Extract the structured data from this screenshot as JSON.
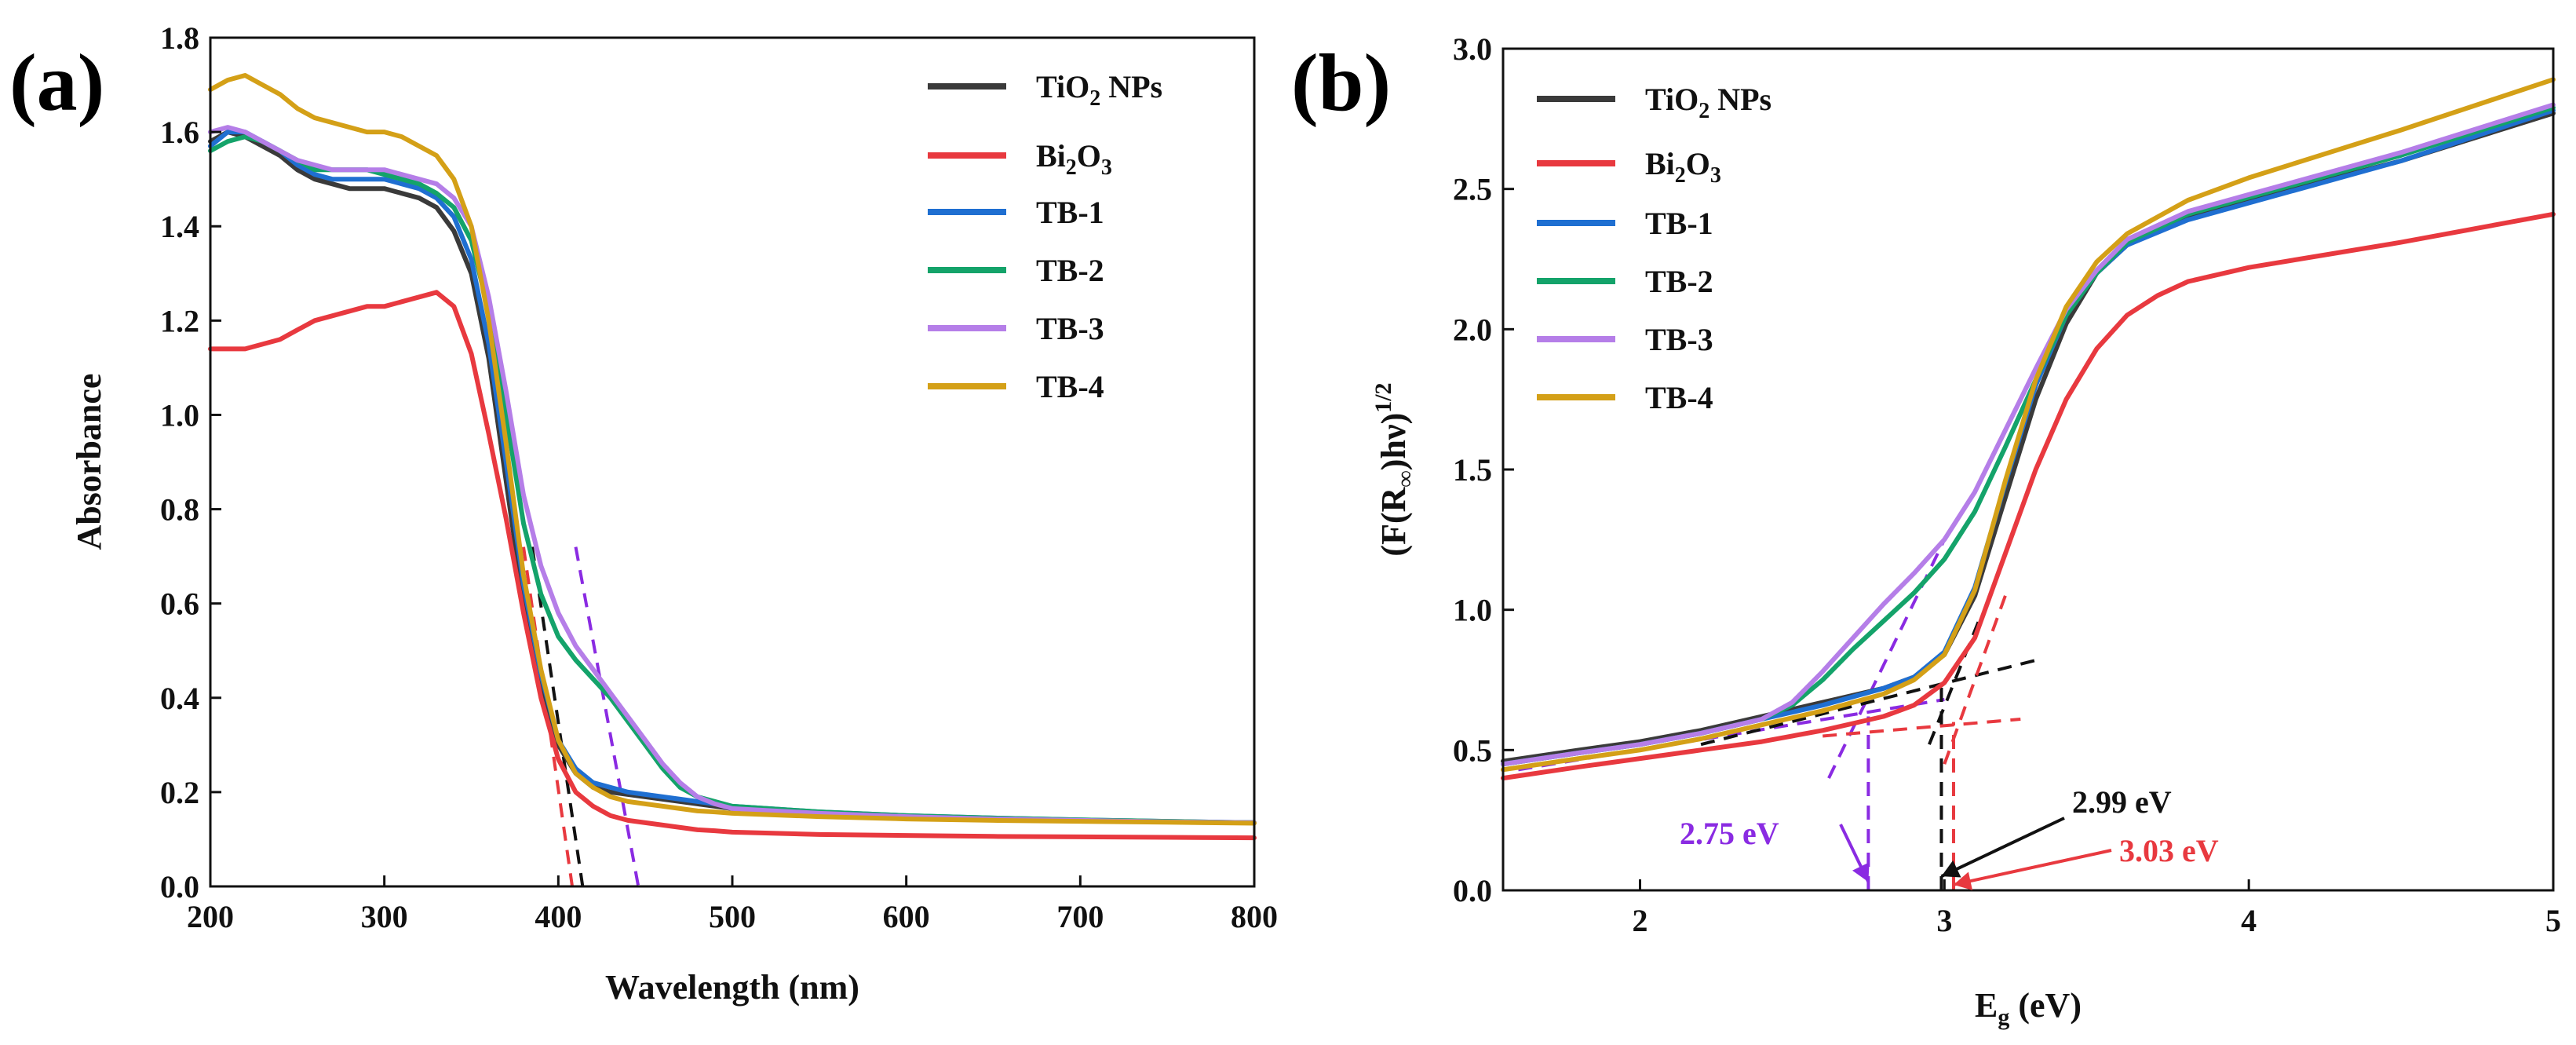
{
  "chart_data": [
    {
      "type": "line",
      "panel_label": "(a)",
      "title": "",
      "xlabel": "Wavelength (nm)",
      "ylabel": "Absorbance",
      "xlim": [
        200,
        800
      ],
      "ylim": [
        0.0,
        1.8
      ],
      "xticks": [
        200,
        300,
        400,
        500,
        600,
        700,
        800
      ],
      "yticks": [
        0.0,
        0.2,
        0.4,
        0.6,
        0.8,
        1.0,
        1.2,
        1.4,
        1.6,
        1.8
      ],
      "legend_position": "top-right",
      "series": [
        {
          "name": "TiO2 NPs",
          "color": "#3a3a3a",
          "x": [
            200,
            210,
            220,
            230,
            240,
            250,
            260,
            270,
            280,
            290,
            300,
            310,
            320,
            330,
            340,
            350,
            360,
            370,
            380,
            390,
            400,
            410,
            420,
            430,
            440,
            450,
            460,
            470,
            480,
            490,
            500,
            550,
            600,
            650,
            700,
            750,
            800
          ],
          "y": [
            1.58,
            1.6,
            1.59,
            1.57,
            1.55,
            1.52,
            1.5,
            1.49,
            1.48,
            1.48,
            1.48,
            1.47,
            1.46,
            1.44,
            1.39,
            1.3,
            1.12,
            0.86,
            0.6,
            0.42,
            0.3,
            0.24,
            0.21,
            0.2,
            0.195,
            0.19,
            0.185,
            0.18,
            0.175,
            0.17,
            0.165,
            0.155,
            0.148,
            0.143,
            0.14,
            0.137,
            0.135
          ]
        },
        {
          "name": "Bi2O3",
          "color": "#e8393f",
          "x": [
            200,
            210,
            220,
            230,
            240,
            250,
            260,
            270,
            280,
            290,
            300,
            310,
            320,
            330,
            340,
            350,
            360,
            370,
            380,
            390,
            400,
            410,
            420,
            430,
            440,
            450,
            460,
            470,
            480,
            490,
            500,
            550,
            600,
            650,
            700,
            750,
            800
          ],
          "y": [
            1.14,
            1.14,
            1.14,
            1.15,
            1.16,
            1.18,
            1.2,
            1.21,
            1.22,
            1.23,
            1.23,
            1.24,
            1.25,
            1.26,
            1.23,
            1.13,
            0.96,
            0.78,
            0.58,
            0.4,
            0.27,
            0.2,
            0.17,
            0.15,
            0.14,
            0.135,
            0.13,
            0.125,
            0.12,
            0.118,
            0.115,
            0.11,
            0.108,
            0.106,
            0.105,
            0.104,
            0.103
          ]
        },
        {
          "name": "TB-1",
          "color": "#1f6fd1",
          "x": [
            200,
            210,
            220,
            230,
            240,
            250,
            260,
            270,
            280,
            290,
            300,
            310,
            320,
            330,
            340,
            350,
            360,
            370,
            380,
            390,
            400,
            410,
            420,
            430,
            440,
            450,
            460,
            470,
            480,
            490,
            500,
            550,
            600,
            650,
            700,
            750,
            800
          ],
          "y": [
            1.57,
            1.6,
            1.6,
            1.58,
            1.56,
            1.53,
            1.51,
            1.5,
            1.5,
            1.5,
            1.5,
            1.49,
            1.48,
            1.46,
            1.42,
            1.33,
            1.15,
            0.9,
            0.64,
            0.45,
            0.31,
            0.25,
            0.22,
            0.21,
            0.2,
            0.195,
            0.19,
            0.185,
            0.18,
            0.175,
            0.17,
            0.158,
            0.15,
            0.145,
            0.141,
            0.138,
            0.135
          ]
        },
        {
          "name": "TB-2",
          "color": "#14a36a",
          "x": [
            200,
            210,
            220,
            230,
            240,
            250,
            260,
            270,
            280,
            290,
            300,
            310,
            320,
            330,
            340,
            350,
            360,
            370,
            380,
            390,
            400,
            410,
            420,
            430,
            440,
            450,
            460,
            470,
            480,
            490,
            500,
            550,
            600,
            650,
            700,
            750,
            800
          ],
          "y": [
            1.56,
            1.58,
            1.59,
            1.58,
            1.56,
            1.54,
            1.52,
            1.52,
            1.52,
            1.52,
            1.51,
            1.5,
            1.49,
            1.47,
            1.44,
            1.37,
            1.22,
            1.0,
            0.77,
            0.62,
            0.53,
            0.48,
            0.44,
            0.4,
            0.35,
            0.3,
            0.25,
            0.21,
            0.19,
            0.18,
            0.17,
            0.158,
            0.15,
            0.145,
            0.141,
            0.138,
            0.135
          ]
        },
        {
          "name": "TB-3",
          "color": "#b57ee8",
          "x": [
            200,
            210,
            220,
            230,
            240,
            250,
            260,
            270,
            280,
            290,
            300,
            310,
            320,
            330,
            340,
            350,
            360,
            370,
            380,
            390,
            400,
            410,
            420,
            430,
            440,
            450,
            460,
            470,
            480,
            490,
            500,
            550,
            600,
            650,
            700,
            750,
            800
          ],
          "y": [
            1.6,
            1.61,
            1.6,
            1.58,
            1.56,
            1.54,
            1.53,
            1.52,
            1.52,
            1.52,
            1.52,
            1.51,
            1.5,
            1.49,
            1.46,
            1.4,
            1.25,
            1.05,
            0.83,
            0.68,
            0.58,
            0.51,
            0.46,
            0.41,
            0.36,
            0.31,
            0.26,
            0.22,
            0.19,
            0.175,
            0.165,
            0.155,
            0.148,
            0.143,
            0.14,
            0.137,
            0.135
          ]
        },
        {
          "name": "TB-4",
          "color": "#d4a017",
          "x": [
            200,
            210,
            220,
            230,
            240,
            250,
            260,
            270,
            280,
            290,
            300,
            310,
            320,
            330,
            340,
            350,
            360,
            370,
            380,
            390,
            400,
            410,
            420,
            430,
            440,
            450,
            460,
            470,
            480,
            490,
            500,
            550,
            600,
            650,
            700,
            750,
            800
          ],
          "y": [
            1.69,
            1.71,
            1.72,
            1.7,
            1.68,
            1.65,
            1.63,
            1.62,
            1.61,
            1.6,
            1.6,
            1.59,
            1.57,
            1.55,
            1.5,
            1.4,
            1.2,
            0.94,
            0.66,
            0.46,
            0.31,
            0.24,
            0.21,
            0.19,
            0.18,
            0.175,
            0.17,
            0.165,
            0.16,
            0.158,
            0.155,
            0.148,
            0.143,
            0.14,
            0.138,
            0.136,
            0.134
          ]
        }
      ],
      "tangent_lines": [
        {
          "color": "#e8393f",
          "x": [
            380,
            408
          ],
          "y": [
            0.72,
            0.0
          ]
        },
        {
          "color": "#111111",
          "x": [
            385,
            414
          ],
          "y": [
            0.72,
            0.0
          ]
        },
        {
          "color": "#8a2be2",
          "x": [
            410,
            446
          ],
          "y": [
            0.72,
            0.0
          ]
        }
      ]
    },
    {
      "type": "line",
      "panel_label": "(b)",
      "title": "",
      "xlabel_main": "E",
      "xlabel_sub": "g",
      "xlabel_tail": " (eV)",
      "ylabel_main": "(F(R",
      "ylabel_sub": "∞",
      "ylabel_tail": ")hν)",
      "ylabel_sup": "1/2",
      "xlim": [
        1.55,
        5.0
      ],
      "ylim": [
        0.0,
        3.0
      ],
      "xticks": [
        2,
        3,
        4,
        5
      ],
      "yticks": [
        0.0,
        0.5,
        1.0,
        1.5,
        2.0,
        2.5,
        3.0
      ],
      "legend_position": "top-left",
      "series": [
        {
          "name": "TiO2 NPs",
          "color": "#3a3a3a",
          "x": [
            1.55,
            1.8,
            2.0,
            2.2,
            2.4,
            2.6,
            2.8,
            2.9,
            3.0,
            3.1,
            3.2,
            3.3,
            3.4,
            3.5,
            3.6,
            3.8,
            4.0,
            4.5,
            5.0
          ],
          "y": [
            0.46,
            0.5,
            0.53,
            0.57,
            0.62,
            0.67,
            0.72,
            0.76,
            0.84,
            1.05,
            1.4,
            1.75,
            2.02,
            2.2,
            2.3,
            2.4,
            2.46,
            2.6,
            2.77
          ]
        },
        {
          "name": "Bi2O3",
          "color": "#e8393f",
          "x": [
            1.55,
            1.8,
            2.0,
            2.2,
            2.4,
            2.6,
            2.8,
            2.9,
            3.0,
            3.1,
            3.2,
            3.3,
            3.4,
            3.5,
            3.6,
            3.7,
            3.8,
            4.0,
            4.5,
            5.0
          ],
          "y": [
            0.4,
            0.44,
            0.47,
            0.5,
            0.53,
            0.57,
            0.62,
            0.66,
            0.74,
            0.9,
            1.2,
            1.5,
            1.75,
            1.93,
            2.05,
            2.12,
            2.17,
            2.22,
            2.31,
            2.41
          ]
        },
        {
          "name": "TB-1",
          "color": "#1f6fd1",
          "x": [
            1.55,
            1.8,
            2.0,
            2.2,
            2.4,
            2.6,
            2.8,
            2.9,
            3.0,
            3.1,
            3.2,
            3.3,
            3.4,
            3.5,
            3.6,
            3.8,
            4.0,
            4.5,
            5.0
          ],
          "y": [
            0.45,
            0.49,
            0.52,
            0.56,
            0.61,
            0.66,
            0.72,
            0.76,
            0.85,
            1.08,
            1.45,
            1.8,
            2.05,
            2.2,
            2.3,
            2.39,
            2.45,
            2.6,
            2.78
          ]
        },
        {
          "name": "TB-2",
          "color": "#14a36a",
          "x": [
            1.55,
            1.8,
            2.0,
            2.2,
            2.4,
            2.5,
            2.6,
            2.7,
            2.8,
            2.9,
            3.0,
            3.1,
            3.2,
            3.3,
            3.4,
            3.5,
            3.6,
            3.8,
            4.0,
            4.5,
            5.0
          ],
          "y": [
            0.45,
            0.49,
            0.52,
            0.56,
            0.61,
            0.66,
            0.75,
            0.86,
            0.96,
            1.06,
            1.18,
            1.35,
            1.58,
            1.82,
            2.05,
            2.2,
            2.31,
            2.41,
            2.47,
            2.62,
            2.79
          ]
        },
        {
          "name": "TB-3",
          "color": "#b57ee8",
          "x": [
            1.55,
            1.8,
            2.0,
            2.2,
            2.4,
            2.5,
            2.6,
            2.7,
            2.8,
            2.9,
            3.0,
            3.1,
            3.2,
            3.3,
            3.4,
            3.5,
            3.6,
            3.8,
            4.0,
            4.5,
            5.0
          ],
          "y": [
            0.45,
            0.49,
            0.52,
            0.56,
            0.61,
            0.67,
            0.78,
            0.9,
            1.02,
            1.13,
            1.25,
            1.42,
            1.64,
            1.86,
            2.07,
            2.21,
            2.32,
            2.42,
            2.48,
            2.63,
            2.8
          ]
        },
        {
          "name": "TB-4",
          "color": "#d4a017",
          "x": [
            1.55,
            1.8,
            2.0,
            2.2,
            2.4,
            2.6,
            2.8,
            2.9,
            3.0,
            3.1,
            3.2,
            3.3,
            3.4,
            3.5,
            3.6,
            3.8,
            4.0,
            4.5,
            5.0
          ],
          "y": [
            0.43,
            0.47,
            0.5,
            0.54,
            0.59,
            0.64,
            0.7,
            0.75,
            0.84,
            1.07,
            1.46,
            1.82,
            2.08,
            2.24,
            2.34,
            2.46,
            2.54,
            2.71,
            2.89
          ]
        }
      ],
      "tangent_lines": [
        {
          "color": "#8a2be2",
          "x": [
            1.6,
            3.0
          ],
          "y": [
            0.43,
            0.68
          ]
        },
        {
          "color": "#8a2be2",
          "x": [
            2.62,
            3.0
          ],
          "y": [
            0.4,
            1.25
          ]
        },
        {
          "color": "#8a2be2",
          "x": [
            2.75,
            2.75
          ],
          "y": [
            0.0,
            0.62
          ]
        },
        {
          "color": "#111111",
          "x": [
            2.2,
            3.3
          ],
          "y": [
            0.52,
            0.82
          ]
        },
        {
          "color": "#111111",
          "x": [
            2.95,
            3.12
          ],
          "y": [
            0.52,
            0.98
          ]
        },
        {
          "color": "#111111",
          "x": [
            2.99,
            2.99
          ],
          "y": [
            0.0,
            0.75
          ]
        },
        {
          "color": "#e8393f",
          "x": [
            2.6,
            3.25
          ],
          "y": [
            0.55,
            0.61
          ]
        },
        {
          "color": "#e8393f",
          "x": [
            3.0,
            3.2
          ],
          "y": [
            0.45,
            1.05
          ]
        },
        {
          "color": "#e8393f",
          "x": [
            3.03,
            3.03
          ],
          "y": [
            0.0,
            0.6
          ]
        }
      ],
      "annotations": [
        {
          "text": "2.75 eV",
          "color": "#8a2be2",
          "arrow_x": 2.75,
          "arrow_y": 0.03
        },
        {
          "text": "2.99 eV",
          "color": "#111111",
          "arrow_x": 2.99,
          "arrow_y": 0.05
        },
        {
          "text": "3.03 eV",
          "color": "#e8393f",
          "arrow_x": 3.03,
          "arrow_y": 0.02
        }
      ]
    }
  ],
  "legend_text": {
    "tio2_main": "TiO",
    "tio2_sub": "2",
    "tio2_tail": " NPs",
    "bi_main": "Bi",
    "bi_sub": "2",
    "bi_mid": "O",
    "bi_sub2": "3",
    "tb1": "TB-1",
    "tb2": "TB-2",
    "tb3": "TB-3",
    "tb4": "TB-4"
  }
}
